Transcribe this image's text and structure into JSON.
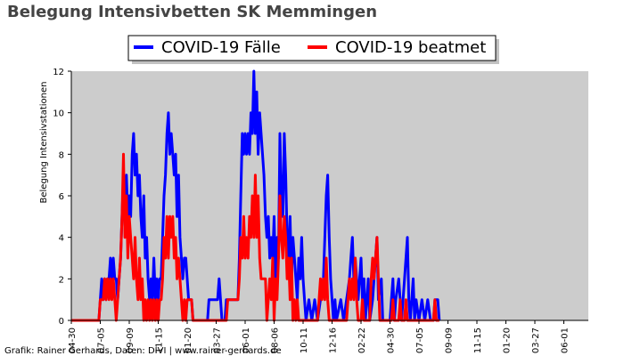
{
  "chart_data": {
    "type": "line",
    "title": "Belegung Intensivbetten SK Memmingen",
    "ylabel": "Belegung Intensivstationen",
    "xlabel": "",
    "ylim": [
      0,
      12
    ],
    "yticks": [
      "0",
      "2",
      "4",
      "6",
      "8",
      "10",
      "12"
    ],
    "xtick_labels": [
      "04-30",
      "07-05",
      "09-09",
      "11-15",
      "01-20",
      "03-27",
      "06-01",
      "08-06",
      "10-11",
      "12-16",
      "02-22",
      "04-30",
      "07-05",
      "09-09",
      "11-15",
      "01-20",
      "03-27",
      "06-01"
    ],
    "grid": false,
    "legend_position": "top-center",
    "plot_background": "#cccccc",
    "series": [
      {
        "name": "COVID-19 Fälle",
        "color": "#0000ff",
        "points": [
          [
            0,
            0
          ],
          [
            0.95,
            0
          ],
          [
            1.0,
            1
          ],
          [
            1.05,
            2
          ],
          [
            1.1,
            1
          ],
          [
            1.15,
            2
          ],
          [
            1.2,
            1
          ],
          [
            1.25,
            2
          ],
          [
            1.3,
            2
          ],
          [
            1.35,
            3
          ],
          [
            1.4,
            2
          ],
          [
            1.45,
            3
          ],
          [
            1.5,
            2
          ],
          [
            1.55,
            2
          ],
          [
            1.6,
            1
          ],
          [
            1.65,
            2
          ],
          [
            1.7,
            3
          ],
          [
            1.75,
            5
          ],
          [
            1.8,
            7
          ],
          [
            1.85,
            6
          ],
          [
            1.9,
            7
          ],
          [
            1.95,
            5
          ],
          [
            2.0,
            6
          ],
          [
            2.05,
            5
          ],
          [
            2.1,
            8
          ],
          [
            2.15,
            9
          ],
          [
            2.2,
            7
          ],
          [
            2.25,
            8
          ],
          [
            2.3,
            6
          ],
          [
            2.35,
            7
          ],
          [
            2.4,
            5
          ],
          [
            2.45,
            4
          ],
          [
            2.5,
            6
          ],
          [
            2.55,
            3
          ],
          [
            2.6,
            4
          ],
          [
            2.65,
            2
          ],
          [
            2.7,
            1
          ],
          [
            2.75,
            2
          ],
          [
            2.8,
            1
          ],
          [
            2.85,
            3
          ],
          [
            2.9,
            1
          ],
          [
            2.95,
            2
          ],
          [
            3.0,
            1
          ],
          [
            3.05,
            2
          ],
          [
            3.1,
            2
          ],
          [
            3.15,
            4
          ],
          [
            3.2,
            6
          ],
          [
            3.25,
            7
          ],
          [
            3.3,
            9
          ],
          [
            3.35,
            10
          ],
          [
            3.4,
            8
          ],
          [
            3.45,
            9
          ],
          [
            3.5,
            8
          ],
          [
            3.55,
            7
          ],
          [
            3.6,
            8
          ],
          [
            3.65,
            5
          ],
          [
            3.7,
            7
          ],
          [
            3.75,
            4
          ],
          [
            3.8,
            3
          ],
          [
            3.85,
            2
          ],
          [
            3.9,
            3
          ],
          [
            3.95,
            3
          ],
          [
            4.0,
            2
          ],
          [
            4.05,
            1
          ],
          [
            4.15,
            1
          ],
          [
            4.2,
            0
          ],
          [
            4.7,
            0
          ],
          [
            4.75,
            1
          ],
          [
            5.05,
            1
          ],
          [
            5.1,
            2
          ],
          [
            5.15,
            1
          ],
          [
            5.2,
            0
          ],
          [
            5.3,
            0
          ],
          [
            5.35,
            1
          ],
          [
            5.75,
            1
          ],
          [
            5.8,
            3
          ],
          [
            5.85,
            6
          ],
          [
            5.9,
            9
          ],
          [
            5.95,
            8
          ],
          [
            6.0,
            9
          ],
          [
            6.05,
            8
          ],
          [
            6.1,
            9
          ],
          [
            6.15,
            8
          ],
          [
            6.2,
            10
          ],
          [
            6.25,
            9
          ],
          [
            6.3,
            12
          ],
          [
            6.35,
            9
          ],
          [
            6.4,
            11
          ],
          [
            6.45,
            8
          ],
          [
            6.5,
            10
          ],
          [
            6.55,
            9
          ],
          [
            6.6,
            8
          ],
          [
            6.65,
            7
          ],
          [
            6.7,
            5
          ],
          [
            6.75,
            4
          ],
          [
            6.8,
            5
          ],
          [
            6.85,
            3
          ],
          [
            6.9,
            4
          ],
          [
            6.95,
            3
          ],
          [
            7.0,
            5
          ],
          [
            7.05,
            2
          ],
          [
            7.1,
            4
          ],
          [
            7.15,
            3
          ],
          [
            7.2,
            9
          ],
          [
            7.25,
            6
          ],
          [
            7.3,
            5
          ],
          [
            7.35,
            9
          ],
          [
            7.4,
            7
          ],
          [
            7.45,
            4
          ],
          [
            7.5,
            3
          ],
          [
            7.55,
            5
          ],
          [
            7.6,
            2
          ],
          [
            7.65,
            4
          ],
          [
            7.7,
            3
          ],
          [
            7.75,
            2
          ],
          [
            7.8,
            1
          ],
          [
            7.85,
            3
          ],
          [
            7.9,
            2
          ],
          [
            7.95,
            4
          ],
          [
            8.0,
            2
          ],
          [
            8.05,
            1
          ],
          [
            8.1,
            0
          ],
          [
            8.2,
            1
          ],
          [
            8.3,
            0
          ],
          [
            8.4,
            1
          ],
          [
            8.5,
            0
          ],
          [
            8.6,
            1
          ],
          [
            8.7,
            2
          ],
          [
            8.75,
            4
          ],
          [
            8.8,
            6
          ],
          [
            8.85,
            7
          ],
          [
            8.9,
            4
          ],
          [
            8.95,
            2
          ],
          [
            9.0,
            1
          ],
          [
            9.05,
            0
          ],
          [
            9.1,
            1
          ],
          [
            9.15,
            0
          ],
          [
            9.3,
            1
          ],
          [
            9.4,
            0
          ],
          [
            9.5,
            1
          ],
          [
            9.6,
            2
          ],
          [
            9.65,
            3
          ],
          [
            9.7,
            4
          ],
          [
            9.75,
            2
          ],
          [
            9.8,
            3
          ],
          [
            9.85,
            2
          ],
          [
            9.9,
            1
          ],
          [
            9.95,
            2
          ],
          [
            10.0,
            3
          ],
          [
            10.05,
            1
          ],
          [
            10.1,
            2
          ],
          [
            10.15,
            0
          ],
          [
            10.2,
            1
          ],
          [
            10.25,
            2
          ],
          [
            10.3,
            0
          ],
          [
            10.4,
            1
          ],
          [
            10.5,
            3
          ],
          [
            10.55,
            4
          ],
          [
            10.6,
            1
          ],
          [
            10.7,
            2
          ],
          [
            10.75,
            0
          ],
          [
            11.0,
            0
          ],
          [
            11.05,
            1
          ],
          [
            11.1,
            2
          ],
          [
            11.15,
            0
          ],
          [
            11.2,
            1
          ],
          [
            11.3,
            2
          ],
          [
            11.35,
            1
          ],
          [
            11.4,
            0
          ],
          [
            11.5,
            2
          ],
          [
            11.6,
            4
          ],
          [
            11.65,
            1
          ],
          [
            11.7,
            0
          ],
          [
            11.8,
            2
          ],
          [
            11.85,
            0
          ],
          [
            11.9,
            1
          ],
          [
            12.0,
            0
          ],
          [
            12.1,
            1
          ],
          [
            12.2,
            0
          ],
          [
            12.3,
            1
          ],
          [
            12.4,
            0
          ],
          [
            12.5,
            0
          ],
          [
            12.55,
            1
          ],
          [
            12.65,
            1
          ],
          [
            12.7,
            0
          ]
        ]
      },
      {
        "name": "COVID-19 beatmet",
        "color": "#ff0000",
        "points": [
          [
            0,
            0
          ],
          [
            0.95,
            0
          ],
          [
            1.0,
            1
          ],
          [
            1.1,
            1
          ],
          [
            1.15,
            2
          ],
          [
            1.2,
            1
          ],
          [
            1.25,
            2
          ],
          [
            1.3,
            1
          ],
          [
            1.35,
            2
          ],
          [
            1.4,
            1
          ],
          [
            1.45,
            2
          ],
          [
            1.5,
            1
          ],
          [
            1.55,
            0
          ],
          [
            1.6,
            1
          ],
          [
            1.65,
            2
          ],
          [
            1.7,
            3
          ],
          [
            1.75,
            5
          ],
          [
            1.8,
            8
          ],
          [
            1.85,
            4
          ],
          [
            1.9,
            6
          ],
          [
            1.95,
            3
          ],
          [
            2.0,
            5
          ],
          [
            2.05,
            4
          ],
          [
            2.1,
            3
          ],
          [
            2.15,
            2
          ],
          [
            2.2,
            4
          ],
          [
            2.25,
            2
          ],
          [
            2.3,
            1
          ],
          [
            2.35,
            3
          ],
          [
            2.4,
            1
          ],
          [
            2.45,
            2
          ],
          [
            2.5,
            0
          ],
          [
            2.55,
            1
          ],
          [
            2.6,
            0
          ],
          [
            2.65,
            1
          ],
          [
            2.7,
            0
          ],
          [
            2.75,
            1
          ],
          [
            2.8,
            0
          ],
          [
            2.85,
            1
          ],
          [
            2.9,
            0
          ],
          [
            2.95,
            1
          ],
          [
            3.0,
            0
          ],
          [
            3.05,
            1
          ],
          [
            3.1,
            1
          ],
          [
            3.15,
            2
          ],
          [
            3.2,
            4
          ],
          [
            3.25,
            3
          ],
          [
            3.3,
            5
          ],
          [
            3.35,
            3
          ],
          [
            3.4,
            5
          ],
          [
            3.45,
            4
          ],
          [
            3.5,
            5
          ],
          [
            3.55,
            3
          ],
          [
            3.6,
            4
          ],
          [
            3.65,
            2
          ],
          [
            3.7,
            3
          ],
          [
            3.75,
            2
          ],
          [
            3.8,
            1
          ],
          [
            3.85,
            0
          ],
          [
            3.9,
            1
          ],
          [
            3.95,
            0
          ],
          [
            4.0,
            1
          ],
          [
            4.15,
            1
          ],
          [
            4.2,
            0
          ],
          [
            5.35,
            0
          ],
          [
            5.4,
            1
          ],
          [
            5.75,
            1
          ],
          [
            5.8,
            2
          ],
          [
            5.85,
            4
          ],
          [
            5.9,
            3
          ],
          [
            5.95,
            5
          ],
          [
            6.0,
            3
          ],
          [
            6.05,
            4
          ],
          [
            6.1,
            3
          ],
          [
            6.15,
            5
          ],
          [
            6.2,
            4
          ],
          [
            6.25,
            6
          ],
          [
            6.3,
            4
          ],
          [
            6.35,
            7
          ],
          [
            6.4,
            4
          ],
          [
            6.45,
            6
          ],
          [
            6.5,
            3
          ],
          [
            6.55,
            2
          ],
          [
            6.7,
            2
          ],
          [
            6.75,
            0
          ],
          [
            6.8,
            1
          ],
          [
            6.85,
            2
          ],
          [
            6.9,
            1
          ],
          [
            6.95,
            3
          ],
          [
            7.0,
            0
          ],
          [
            7.05,
            2
          ],
          [
            7.1,
            1
          ],
          [
            7.15,
            3
          ],
          [
            7.2,
            6
          ],
          [
            7.25,
            4
          ],
          [
            7.3,
            3
          ],
          [
            7.35,
            5
          ],
          [
            7.4,
            4
          ],
          [
            7.45,
            2
          ],
          [
            7.5,
            3
          ],
          [
            7.55,
            1
          ],
          [
            7.6,
            3
          ],
          [
            7.65,
            0
          ],
          [
            7.7,
            1
          ],
          [
            7.75,
            0
          ],
          [
            7.8,
            1
          ],
          [
            7.85,
            0
          ],
          [
            8.5,
            0
          ],
          [
            8.55,
            1
          ],
          [
            8.6,
            2
          ],
          [
            8.65,
            1
          ],
          [
            8.7,
            2
          ],
          [
            8.75,
            1
          ],
          [
            8.8,
            3
          ],
          [
            8.85,
            1
          ],
          [
            8.9,
            0
          ],
          [
            9.5,
            0
          ],
          [
            9.55,
            1
          ],
          [
            9.6,
            2
          ],
          [
            9.65,
            1
          ],
          [
            9.7,
            2
          ],
          [
            9.75,
            1
          ],
          [
            9.8,
            3
          ],
          [
            9.85,
            1
          ],
          [
            9.9,
            0
          ],
          [
            10.0,
            0
          ],
          [
            10.05,
            1
          ],
          [
            10.1,
            0
          ],
          [
            10.3,
            0
          ],
          [
            10.35,
            2
          ],
          [
            10.4,
            3
          ],
          [
            10.45,
            2
          ],
          [
            10.55,
            4
          ],
          [
            10.6,
            2
          ],
          [
            10.65,
            0
          ],
          [
            11.05,
            0
          ],
          [
            11.1,
            1
          ],
          [
            11.15,
            0
          ],
          [
            11.3,
            0
          ],
          [
            11.35,
            1
          ],
          [
            11.4,
            0
          ],
          [
            11.5,
            0
          ],
          [
            11.55,
            1
          ],
          [
            11.6,
            0
          ],
          [
            12.5,
            0
          ],
          [
            12.55,
            1
          ],
          [
            12.6,
            0
          ],
          [
            12.7,
            0
          ]
        ]
      }
    ]
  },
  "credit": "Grafik: Rainer Gerhards, Daten: DIVI | www.rainer-gerhards.de"
}
